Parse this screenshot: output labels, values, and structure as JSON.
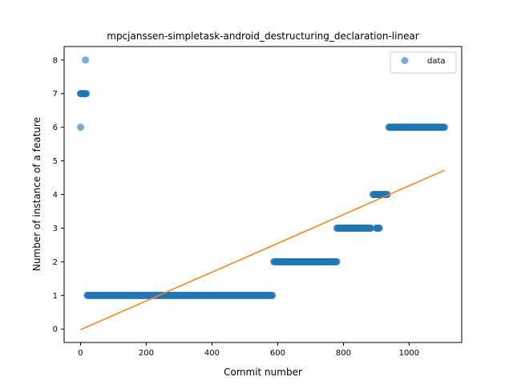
{
  "chart_data": {
    "type": "scatter",
    "title": "mpcjanssen-simpletask-android_destructuring_declaration-linear",
    "xlabel": "Commit number",
    "ylabel": "Number of instance of a feature",
    "xlim": [
      -50,
      1160
    ],
    "ylim": [
      -0.4,
      8.4
    ],
    "xticks": [
      0,
      200,
      400,
      600,
      800,
      1000
    ],
    "yticks": [
      0,
      1,
      2,
      3,
      4,
      5,
      6,
      7,
      8
    ],
    "grid": false,
    "legend": {
      "placement": "top-right",
      "entries": [
        "data"
      ]
    },
    "colors": {
      "data": "#1f77b4",
      "fit": "#ff7f0e"
    },
    "series": [
      {
        "name": "data",
        "kind": "scatter",
        "points": [
          [
            0,
            6
          ],
          [
            0,
            7
          ],
          [
            15,
            8
          ]
        ],
        "runs": [
          {
            "y": 7,
            "x_start": 0,
            "x_end": 18
          },
          {
            "y": 1,
            "x_start": 20,
            "x_end": 585
          },
          {
            "y": 2,
            "x_start": 588,
            "x_end": 780
          },
          {
            "y": 3,
            "x_start": 780,
            "x_end": 885
          },
          {
            "y": 3,
            "x_start": 900,
            "x_end": 910
          },
          {
            "y": 4,
            "x_start": 890,
            "x_end": 935
          },
          {
            "y": 6,
            "x_start": 938,
            "x_end": 1108
          }
        ]
      },
      {
        "kind": "line",
        "x": [
          0,
          1108
        ],
        "y": [
          -0.02,
          4.72
        ]
      }
    ]
  }
}
